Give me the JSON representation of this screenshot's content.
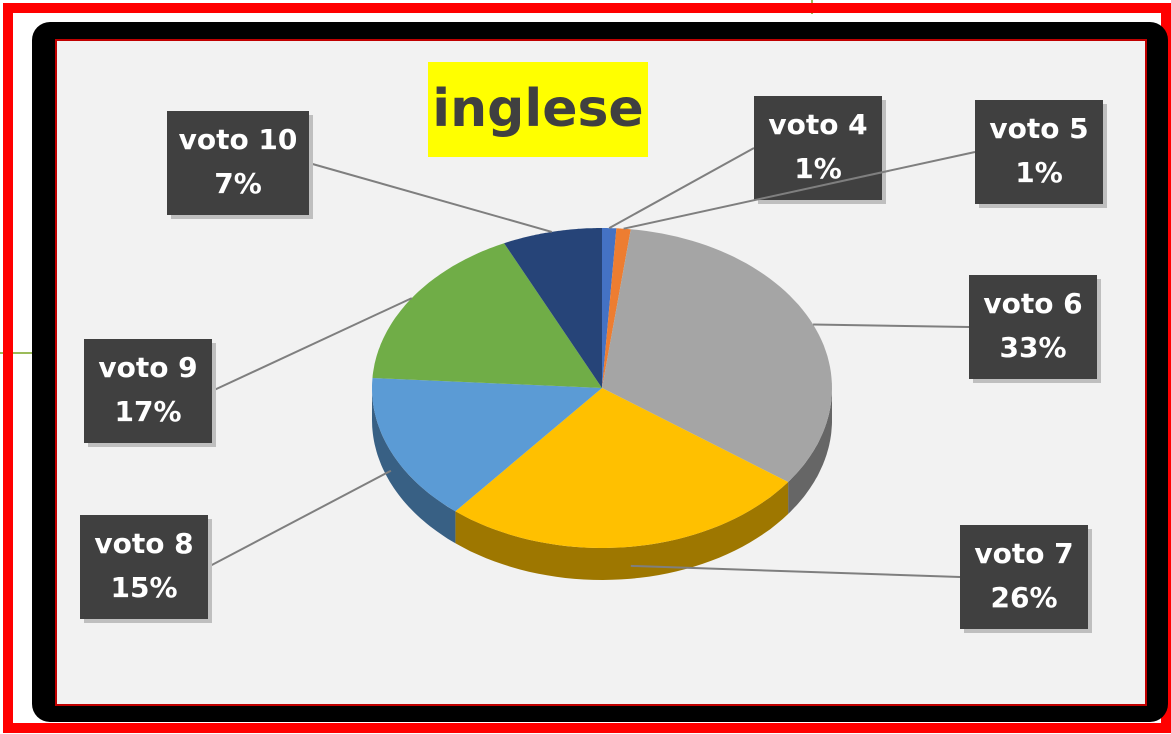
{
  "chart_data": {
    "type": "pie",
    "title": "inglese",
    "categories": [
      "voto 4",
      "voto 5",
      "voto 6",
      "voto 7",
      "voto 8",
      "voto 9",
      "voto 10"
    ],
    "values": [
      1,
      1,
      33,
      26,
      15,
      17,
      7
    ],
    "value_labels": [
      "1%",
      "1%",
      "33%",
      "26%",
      "15%",
      "17%",
      "7%"
    ],
    "colors": [
      "#4472c4",
      "#ed7d31",
      "#a5a5a5",
      "#ffc000",
      "#5b9bd5",
      "#70ad47",
      "#264478"
    ]
  }
}
